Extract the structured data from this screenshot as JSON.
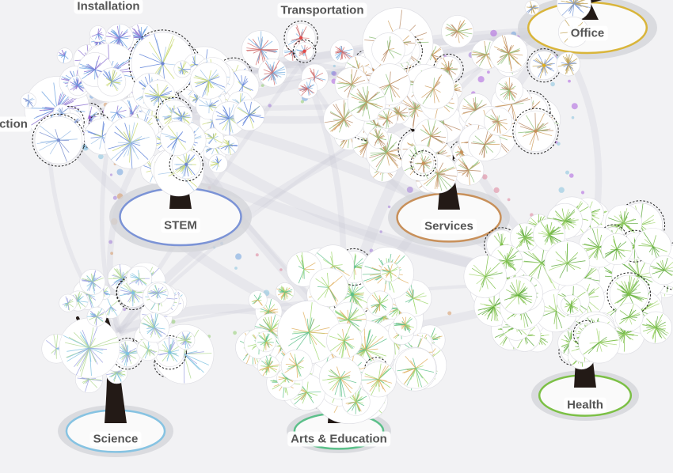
{
  "clusters": [
    {
      "id": "installation",
      "label": "Installation",
      "accent": "#9b5fd6",
      "ring": "none",
      "bloom": [
        "#8a6fd0",
        "#6aa0e0"
      ]
    },
    {
      "id": "transportation",
      "label": "Transportation",
      "accent": "#e04a4a",
      "ring": "none",
      "bloom": [
        "#d06a6a",
        "#7ab0e0"
      ]
    },
    {
      "id": "office",
      "label": "Office",
      "accent": "#e0b020",
      "ring": "#d9b53a",
      "bloom": [
        "#c0a050",
        "#7a9ad8"
      ]
    },
    {
      "id": "construction",
      "label": "ction",
      "accent": "#7a8fd0",
      "ring": "none",
      "bloom": [
        "#7a8fd0",
        "#9fc0e8"
      ]
    },
    {
      "id": "stem",
      "label": "STEM",
      "accent": "#6f87d0",
      "ring": "#7b93d6",
      "bloom": [
        "#5a7fd8",
        "#a0c4e8",
        "#c8d870"
      ]
    },
    {
      "id": "services",
      "label": "Services",
      "accent": "#c8905a",
      "ring": "#c8905a",
      "bloom": [
        "#b88a64",
        "#8fbf7a",
        "#d0a060"
      ]
    },
    {
      "id": "science",
      "label": "Science",
      "accent": "#7ec2e0",
      "ring": "#86c3e2",
      "bloom": [
        "#7ec2e0",
        "#b0d890",
        "#9aa0e0"
      ]
    },
    {
      "id": "arts",
      "label": "Arts & Education",
      "accent": "#5cc08a",
      "ring": "#5cc08a",
      "bloom": [
        "#5cc08a",
        "#a0d870",
        "#e0b060"
      ]
    },
    {
      "id": "health",
      "label": "Health",
      "accent": "#7cc046",
      "ring": "#7cc046",
      "bloom": [
        "#7cc046",
        "#a8d878",
        "#5aa83a"
      ]
    }
  ]
}
